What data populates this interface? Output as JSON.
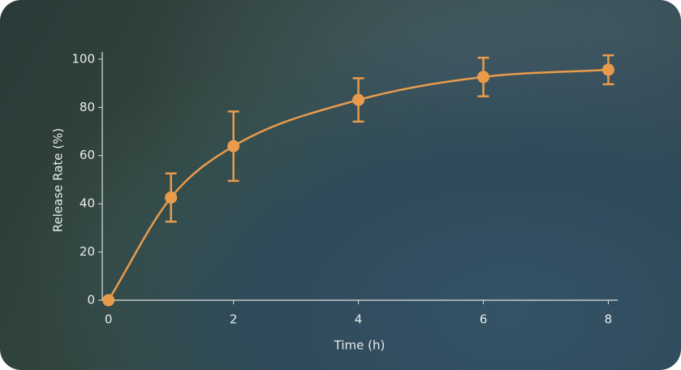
{
  "chart_data": {
    "type": "line",
    "x_label": "Time (h)",
    "y_label": "Release Rate (%)",
    "x": [
      0,
      1,
      2,
      4,
      6,
      8
    ],
    "series": [
      {
        "color": "#e99b4c",
        "values": [
          0,
          42.6,
          63.9,
          83.1,
          92.6,
          95.6
        ],
        "errors": [
          0,
          10,
          14.4,
          9,
          8,
          6
        ]
      }
    ],
    "xlim": [
      -0.1,
      8.15
    ],
    "ylim": [
      0,
      103
    ],
    "xticks": [
      0,
      2,
      4,
      6,
      8
    ],
    "yticks": [
      0,
      20,
      40,
      60,
      80,
      100
    ]
  }
}
